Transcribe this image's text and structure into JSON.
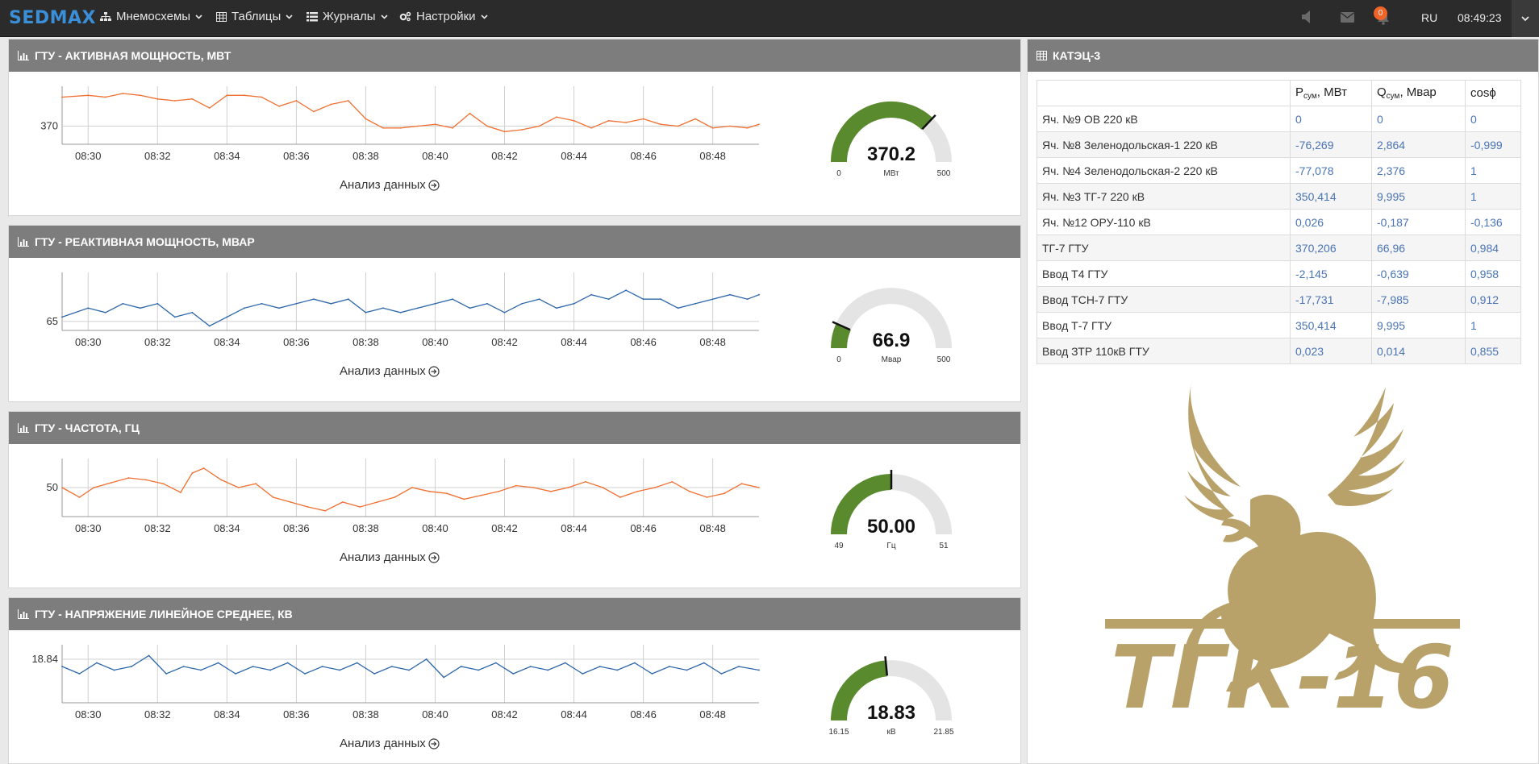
{
  "app": {
    "logo": "SEDMAX",
    "menu": [
      {
        "label": "Мнемосхемы",
        "icon": "sitemap-icon"
      },
      {
        "label": "Таблицы",
        "icon": "table-icon"
      },
      {
        "label": "Журналы",
        "icon": "list-icon"
      },
      {
        "label": "Настройки",
        "icon": "cogs-icon"
      }
    ],
    "notifications_count": "0",
    "language": "RU",
    "time": "08:49:23"
  },
  "charts": [
    {
      "title": "ГТУ - АКТИВНАЯ МОЩНОСТЬ, МВТ",
      "analysis_label": "Анализ данных",
      "chart_data": {
        "type": "line",
        "color": "#f07032",
        "x_ticks": [
          "08:30",
          "08:32",
          "08:34",
          "08:36",
          "08:38",
          "08:40",
          "08:42",
          "08:44",
          "08:46",
          "08:48"
        ],
        "y_tick": "370",
        "x_range": [
          "08:29:15",
          "08:49:20"
        ],
        "y_range": [
          360,
          392
        ],
        "x": [
          "08:29:15",
          "08:30:00",
          "08:30:30",
          "08:31:00",
          "08:31:30",
          "08:32:00",
          "08:32:30",
          "08:33:00",
          "08:33:30",
          "08:34:00",
          "08:34:30",
          "08:35:00",
          "08:35:30",
          "08:36:00",
          "08:36:30",
          "08:37:00",
          "08:37:30",
          "08:38:00",
          "08:38:30",
          "08:39:00",
          "08:39:30",
          "08:40:00",
          "08:40:30",
          "08:41:00",
          "08:41:30",
          "08:42:00",
          "08:42:30",
          "08:43:00",
          "08:43:30",
          "08:44:00",
          "08:44:30",
          "08:45:00",
          "08:45:30",
          "08:46:00",
          "08:46:30",
          "08:47:00",
          "08:47:30",
          "08:48:00",
          "08:48:30",
          "08:49:00",
          "08:49:20"
        ],
        "y": [
          386,
          387,
          386,
          388,
          387,
          385,
          384,
          385,
          380,
          387,
          387,
          386,
          381,
          384,
          378,
          382,
          384,
          374,
          369,
          369,
          370,
          371,
          369,
          377,
          370,
          367,
          368,
          370,
          375,
          373,
          369,
          373,
          372,
          374,
          371,
          370,
          374,
          369,
          370,
          369,
          371
        ]
      },
      "gauge": {
        "value": "370.2",
        "unit": "МВт",
        "min": "0",
        "max": "500",
        "level": 0.7404
      }
    },
    {
      "title": "ГТУ - РЕАКТИВНАЯ МОЩНОСТЬ, МВАР",
      "analysis_label": "Анализ данных",
      "chart_data": {
        "type": "line",
        "color": "#2c66aa",
        "x_ticks": [
          "08:30",
          "08:32",
          "08:34",
          "08:36",
          "08:38",
          "08:40",
          "08:42",
          "08:44",
          "08:46",
          "08:48"
        ],
        "y_tick": "65",
        "x_range": [
          "08:29:15",
          "08:49:20"
        ],
        "y_range": [
          63,
          76
        ],
        "x": [
          "08:29:15",
          "08:30:00",
          "08:30:30",
          "08:31:00",
          "08:31:30",
          "08:32:00",
          "08:32:30",
          "08:33:00",
          "08:33:30",
          "08:34:00",
          "08:34:30",
          "08:35:00",
          "08:35:30",
          "08:36:00",
          "08:36:30",
          "08:37:00",
          "08:37:30",
          "08:38:00",
          "08:38:30",
          "08:39:00",
          "08:39:30",
          "08:40:00",
          "08:40:30",
          "08:41:00",
          "08:41:30",
          "08:42:00",
          "08:42:30",
          "08:43:00",
          "08:43:30",
          "08:44:00",
          "08:44:30",
          "08:45:00",
          "08:45:30",
          "08:46:00",
          "08:46:30",
          "08:47:00",
          "08:47:30",
          "08:48:00",
          "08:48:30",
          "08:49:00",
          "08:49:20"
        ],
        "y": [
          66,
          68,
          67,
          69,
          68,
          69,
          66,
          67,
          64,
          66,
          68,
          69,
          68,
          69,
          70,
          69,
          70,
          67,
          68,
          67,
          68,
          69,
          70,
          68,
          69,
          67,
          69,
          70,
          68,
          69,
          71,
          70,
          72,
          70,
          70,
          68,
          69,
          70,
          71,
          70,
          71
        ]
      },
      "gauge": {
        "value": "66.9",
        "unit": "Мвар",
        "min": "0",
        "max": "500",
        "level": 0.1338
      }
    },
    {
      "title": "ГТУ - ЧАСТОТА, ГЦ",
      "analysis_label": "Анализ данных",
      "chart_data": {
        "type": "line",
        "color": "#f07032",
        "x_ticks": [
          "08:30",
          "08:32",
          "08:34",
          "08:36",
          "08:38",
          "08:40",
          "08:42",
          "08:44",
          "08:46",
          "08:48"
        ],
        "y_tick": "50",
        "x_range": [
          "08:29:15",
          "08:49:20"
        ],
        "y_range": [
          49.97,
          50.03
        ],
        "x": [
          "08:29:15",
          "08:29:45",
          "08:30:10",
          "08:30:40",
          "08:31:10",
          "08:31:40",
          "08:32:10",
          "08:32:40",
          "08:33:00",
          "08:33:20",
          "08:33:50",
          "08:34:20",
          "08:34:50",
          "08:35:20",
          "08:35:50",
          "08:36:20",
          "08:36:50",
          "08:37:20",
          "08:37:50",
          "08:38:20",
          "08:38:50",
          "08:39:20",
          "08:39:50",
          "08:40:20",
          "08:40:50",
          "08:41:20",
          "08:41:50",
          "08:42:20",
          "08:42:50",
          "08:43:20",
          "08:43:50",
          "08:44:20",
          "08:44:50",
          "08:45:20",
          "08:45:50",
          "08:46:20",
          "08:46:50",
          "08:47:20",
          "08:47:50",
          "08:48:20",
          "08:48:50",
          "08:49:20"
        ],
        "y": [
          50.0,
          49.99,
          50.0,
          50.005,
          50.01,
          50.008,
          50.004,
          49.995,
          50.015,
          50.02,
          50.008,
          50.0,
          50.004,
          49.99,
          49.985,
          49.98,
          49.976,
          49.985,
          49.98,
          49.985,
          49.99,
          50.0,
          49.996,
          49.994,
          49.988,
          49.992,
          49.996,
          50.002,
          50.0,
          49.996,
          50.0,
          50.006,
          50.0,
          49.99,
          49.996,
          50.0,
          50.006,
          49.996,
          49.99,
          49.994,
          50.004,
          50.0
        ]
      },
      "gauge": {
        "value": "50.00",
        "unit": "Гц",
        "min": "49",
        "max": "51",
        "level": 0.5
      }
    },
    {
      "title": "ГТУ - НАПРЯЖЕНИЕ ЛИНЕЙНОЕ СРЕДНЕЕ, КВ",
      "analysis_label": "Анализ данных",
      "chart_data": {
        "type": "line",
        "color": "#2c66aa",
        "x_ticks": [
          "08:30",
          "08:32",
          "08:34",
          "08:36",
          "08:38",
          "08:40",
          "08:42",
          "08:44",
          "08:46",
          "08:48"
        ],
        "y_tick": "18.84",
        "x_range": [
          "08:29:15",
          "08:49:20"
        ],
        "y_range": [
          18.78,
          18.86
        ],
        "x": [
          "08:29:15",
          "08:29:45",
          "08:30:15",
          "08:30:45",
          "08:31:15",
          "08:31:45",
          "08:32:15",
          "08:32:45",
          "08:33:15",
          "08:33:45",
          "08:34:15",
          "08:34:45",
          "08:35:15",
          "08:35:45",
          "08:36:15",
          "08:36:45",
          "08:37:15",
          "08:37:45",
          "08:38:15",
          "08:38:45",
          "08:39:15",
          "08:39:45",
          "08:40:15",
          "08:40:45",
          "08:41:15",
          "08:41:45",
          "08:42:15",
          "08:42:45",
          "08:43:15",
          "08:43:45",
          "08:44:15",
          "08:44:45",
          "08:45:15",
          "08:45:45",
          "08:46:15",
          "08:46:45",
          "08:47:15",
          "08:47:45",
          "08:48:15",
          "08:48:45",
          "08:49:20"
        ],
        "y": [
          18.83,
          18.82,
          18.835,
          18.825,
          18.83,
          18.845,
          18.82,
          18.83,
          18.825,
          18.835,
          18.82,
          18.83,
          18.825,
          18.835,
          18.82,
          18.83,
          18.825,
          18.835,
          18.82,
          18.83,
          18.825,
          18.84,
          18.815,
          18.83,
          18.825,
          18.835,
          18.82,
          18.83,
          18.825,
          18.835,
          18.82,
          18.83,
          18.825,
          18.835,
          18.82,
          18.83,
          18.825,
          18.835,
          18.82,
          18.83,
          18.825
        ]
      },
      "gauge": {
        "value": "18.83",
        "unit": "кВ",
        "min": "16.15",
        "max": "21.85",
        "level": 0.4702
      }
    }
  ],
  "table_panel": {
    "title": "КАТЭЦ-3",
    "columns": [
      {
        "main": "P",
        "sub": "сум",
        "rest": ", МВт"
      },
      {
        "main": "Q",
        "sub": "сум",
        "rest": ", Мвар"
      },
      {
        "main": "cosϕ",
        "sub": "",
        "rest": ""
      }
    ],
    "rows": [
      {
        "name": "Яч. №9 ОВ 220 кВ",
        "p": "0",
        "q": "0",
        "cos": "0"
      },
      {
        "name": "Яч. №8 Зеленодольская-1 220 кВ",
        "p": "-76,269",
        "q": "2,864",
        "cos": "-0,999"
      },
      {
        "name": "Яч. №4 Зеленодольская-2 220 кВ",
        "p": "-77,078",
        "q": "2,376",
        "cos": "1"
      },
      {
        "name": "Яч. №3 ТГ-7 220 кВ",
        "p": "350,414",
        "q": "9,995",
        "cos": "1"
      },
      {
        "name": "Яч. №12 ОРУ-110 кВ",
        "p": "0,026",
        "q": "-0,187",
        "cos": "-0,136"
      },
      {
        "name": "ТГ-7 ГТУ",
        "p": "370,206",
        "q": "66,96",
        "cos": "0,984"
      },
      {
        "name": "Ввод Т4 ГТУ",
        "p": "-2,145",
        "q": "-0,639",
        "cos": "0,958"
      },
      {
        "name": "Ввод ТСН-7 ГТУ",
        "p": "-17,731",
        "q": "-7,985",
        "cos": "0,912"
      },
      {
        "name": "Ввод Т-7 ГТУ",
        "p": "350,414",
        "q": "9,995",
        "cos": "1"
      },
      {
        "name": "Ввод ЗТР 110кВ ГТУ",
        "p": "0,023",
        "q": "0,014",
        "cos": "0,855"
      }
    ]
  },
  "logo_block": {
    "text": "ТГК-16",
    "color": "#b8a26a"
  },
  "colors": {
    "navbar": "#2b2b2b",
    "panel_header": "#7d7d7d",
    "gauge_fill": "#5a8a2e",
    "gauge_track": "#e4e4e4",
    "accent_orange": "#f07032",
    "accent_blue": "#2c66aa"
  }
}
